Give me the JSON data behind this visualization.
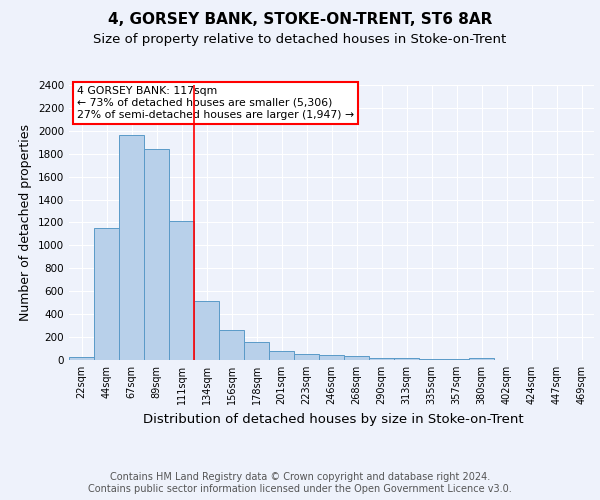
{
  "title": "4, GORSEY BANK, STOKE-ON-TRENT, ST6 8AR",
  "subtitle": "Size of property relative to detached houses in Stoke-on-Trent",
  "xlabel": "Distribution of detached houses by size in Stoke-on-Trent",
  "ylabel": "Number of detached properties",
  "categories": [
    "22sqm",
    "44sqm",
    "67sqm",
    "89sqm",
    "111sqm",
    "134sqm",
    "156sqm",
    "178sqm",
    "201sqm",
    "223sqm",
    "246sqm",
    "268sqm",
    "290sqm",
    "313sqm",
    "335sqm",
    "357sqm",
    "380sqm",
    "402sqm",
    "424sqm",
    "447sqm",
    "469sqm"
  ],
  "values": [
    30,
    1150,
    1960,
    1840,
    1210,
    515,
    265,
    155,
    80,
    50,
    40,
    35,
    20,
    20,
    12,
    8,
    20,
    3,
    0,
    0,
    3
  ],
  "bar_color": "#b8d0ea",
  "bar_edge_color": "#5a9ac8",
  "ylim": [
    0,
    2400
  ],
  "yticks": [
    0,
    200,
    400,
    600,
    800,
    1000,
    1200,
    1400,
    1600,
    1800,
    2000,
    2200,
    2400
  ],
  "property_label": "4 GORSEY BANK: 117sqm",
  "pct_smaller": 73,
  "n_smaller": 5306,
  "pct_larger_semi": 27,
  "n_larger_semi": 1947,
  "red_line_index": 4.5,
  "footer_line1": "Contains HM Land Registry data © Crown copyright and database right 2024.",
  "footer_line2": "Contains public sector information licensed under the Open Government Licence v3.0.",
  "bg_color": "#eef2fb",
  "plot_bg_color": "#eef2fb",
  "grid_color": "#ffffff",
  "title_fontsize": 11,
  "subtitle_fontsize": 9.5,
  "axis_label_fontsize": 9,
  "tick_fontsize": 7.5,
  "footer_fontsize": 7,
  "annot_fontsize": 7.8
}
